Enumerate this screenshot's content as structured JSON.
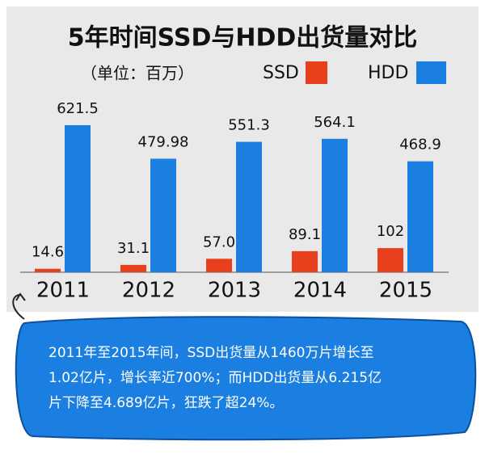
{
  "chart_data": {
    "type": "bar",
    "title": "5年时间SSD与HDD出货量对比",
    "subtitle": "（单位：百万）",
    "categories": [
      "2011",
      "2012",
      "2013",
      "2014",
      "2015"
    ],
    "series": [
      {
        "name": "SSD",
        "color": "#e8401c",
        "values": [
          14.6,
          31.1,
          57.0,
          89.1,
          102
        ],
        "value_labels": [
          "14.6",
          "31.1",
          "57.0",
          "89.1",
          "102"
        ]
      },
      {
        "name": "HDD",
        "color": "#1a7fe0",
        "values": [
          621.5,
          479.98,
          551.3,
          564.1,
          468.9
        ]
      }
    ],
    "annotations": [
      "2011年至2015年间，SSD出货量从1460万片增长至",
      "1.02亿片，增长率近700%；而HDD出货量从6.215亿",
      "片下降至4.689亿片，狂跌了超24%。"
    ]
  }
}
